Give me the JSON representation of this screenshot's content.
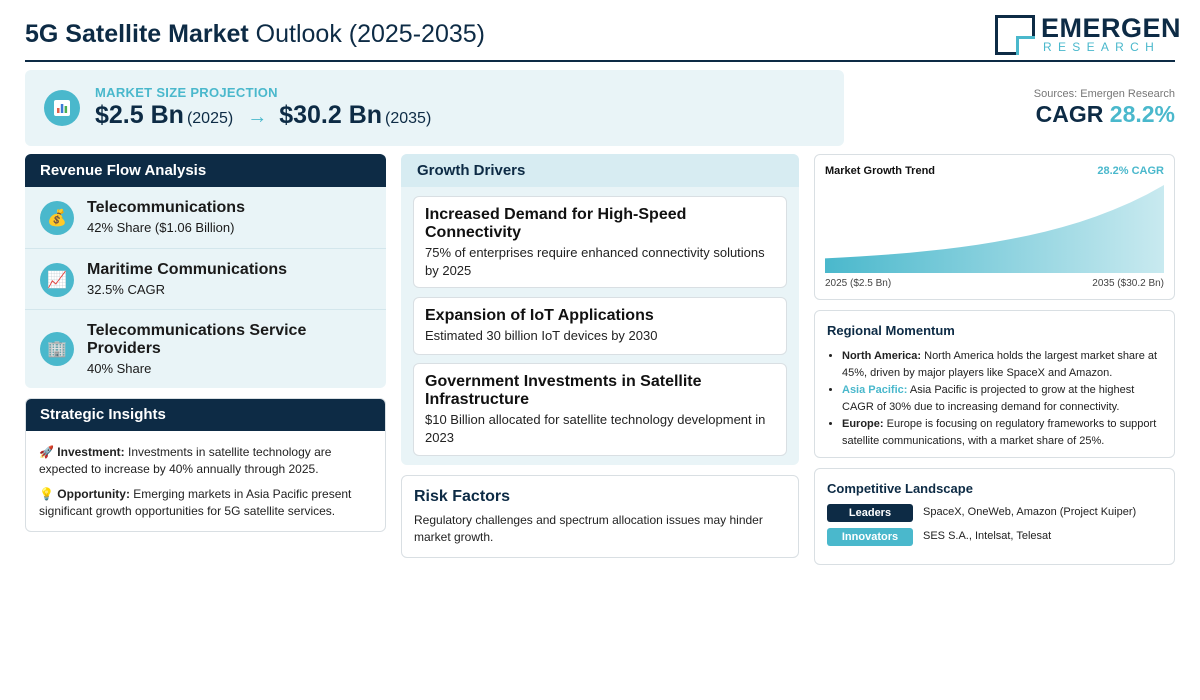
{
  "header": {
    "title_bold": "5G Satellite Market",
    "title_rest": "Outlook (2025-2035)",
    "logo_name": "EMERGEN",
    "logo_sub": "RESEARCH"
  },
  "projection": {
    "label": "MARKET SIZE PROJECTION",
    "start_value": "$2.5 Bn",
    "start_year": "(2025)",
    "arrow": "→",
    "end_value": "$30.2 Bn",
    "end_year": "(2035)",
    "icon": "bar-chart-icon"
  },
  "sources": "Sources: Emergen Research",
  "cagr": {
    "label": "CAGR",
    "value": "28.2%"
  },
  "revenue": {
    "title": "Revenue Flow Analysis",
    "items": [
      {
        "icon": "money-bag-icon",
        "title": "Telecommunications",
        "sub": "42% Share ($1.06 Billion)"
      },
      {
        "icon": "trend-chart-icon",
        "title": "Maritime Communications",
        "sub": "32.5% CAGR"
      },
      {
        "icon": "office-building-icon",
        "title": "Telecommunications Service Providers",
        "sub": "40% Share"
      }
    ]
  },
  "insights": {
    "title": "Strategic Insights",
    "items": [
      {
        "icon": "rocket-icon",
        "label": "Investment:",
        "text": "Investments in satellite technology are expected to increase by 40% annually through 2025."
      },
      {
        "icon": "lightbulb-icon",
        "label": "Opportunity:",
        "text": "Emerging markets in Asia Pacific present significant growth opportunities for 5G satellite services."
      }
    ]
  },
  "drivers": {
    "title": "Growth Drivers",
    "items": [
      {
        "title": "Increased Demand for High-Speed Connectivity",
        "desc": "75% of enterprises require enhanced connectivity solutions by 2025"
      },
      {
        "title": "Expansion of IoT Applications",
        "desc": "Estimated 30 billion IoT devices by 2030"
      },
      {
        "title": "Government Investments in Satellite Infrastructure",
        "desc": "$10 Billion allocated for satellite technology development in 2023"
      }
    ]
  },
  "risk": {
    "title": "Risk Factors",
    "desc": "Regulatory challenges and spectrum allocation issues may hinder market growth."
  },
  "trend": {
    "title": "Market Growth Trend",
    "cagr": "28.2% CAGR",
    "start_label": "2025 ($2.5 Bn)",
    "end_label": "2035 ($30.2 Bn)"
  },
  "chart_data": {
    "type": "area",
    "title": "Market Growth Trend",
    "x": [
      2025,
      2035
    ],
    "xlabel": "",
    "ylabel": "",
    "series": [
      {
        "values": [
          2.5,
          30.2
        ]
      }
    ],
    "annotations": [
      "28.2% CAGR",
      "2025 ($2.5 Bn)",
      "2035 ($30.2 Bn)"
    ],
    "grid": false,
    "colors": [
      "#4ab8cc"
    ]
  },
  "regional": {
    "title": "Regional Momentum",
    "items": [
      {
        "region": "North America:",
        "text": "North America holds the largest market share at 45%, driven by major players like SpaceX and Amazon."
      },
      {
        "region": "Asia Pacific:",
        "text": "Asia Pacific is projected to grow at the highest CAGR of 30% due to increasing demand for connectivity."
      },
      {
        "region": "Europe:",
        "text": "Europe is focusing on regulatory frameworks to support satellite communications, with a market share of 25%."
      }
    ]
  },
  "competitive": {
    "title": "Competitive Landscape",
    "rows": [
      {
        "badge": "Leaders",
        "text": "SpaceX, OneWeb, Amazon (Project Kuiper)",
        "color": "#0d2b45"
      },
      {
        "badge": "Innovators",
        "text": "SES S.A., Intelsat, Telesat",
        "color": "#4ab8cc"
      }
    ]
  },
  "colors": {
    "navy": "#0d2b45",
    "accent": "#4ab8cc",
    "panel": "#e9f4f7"
  }
}
